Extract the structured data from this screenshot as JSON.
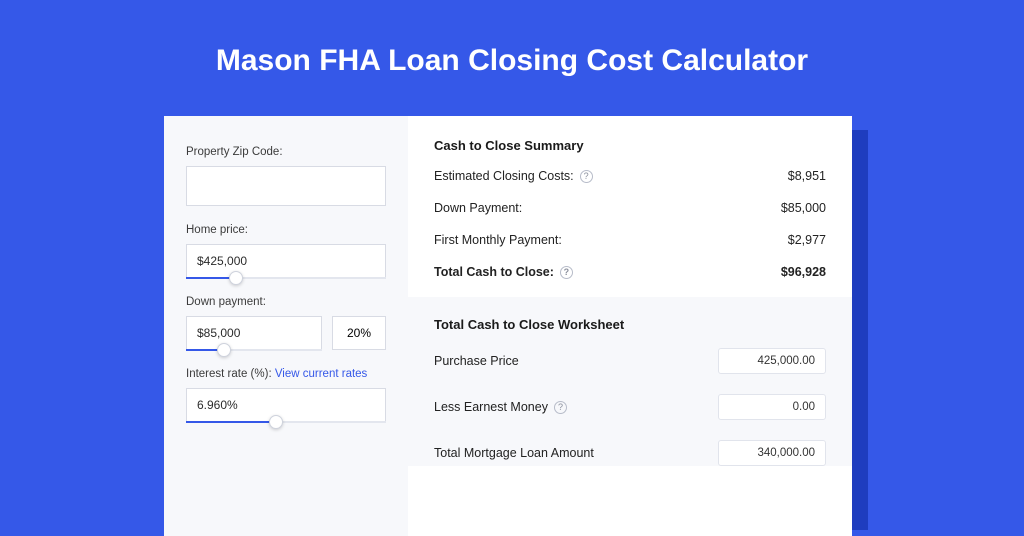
{
  "header": {
    "title": "Mason FHA Loan Closing Cost Calculator"
  },
  "colors": {
    "page_bg": "#3558e8",
    "card_bg": "#ffffff",
    "left_panel_bg": "#f7f8fb",
    "input_border": "#d8dbe4",
    "slider_fill": "#3558e8",
    "slider_empty": "#e3e6ee",
    "link": "#3558e8",
    "card_shadow": "#1e3dbf",
    "text": "#2b2b2b"
  },
  "form": {
    "zip": {
      "label": "Property Zip Code:",
      "value": ""
    },
    "home_price": {
      "label": "Home price:",
      "value": "$425,000",
      "slider_percent": 25
    },
    "down_payment": {
      "label": "Down payment:",
      "value": "$85,000",
      "percent_value": "20%",
      "slider_percent": 28
    },
    "interest_rate": {
      "label_prefix": "Interest rate (%): ",
      "link_text": "View current rates",
      "value": "6.960%",
      "slider_percent": 45
    }
  },
  "summary": {
    "title": "Cash to Close Summary",
    "rows": [
      {
        "label": "Estimated Closing Costs:",
        "help": true,
        "value": "$8,951",
        "bold": false
      },
      {
        "label": "Down Payment:",
        "help": false,
        "value": "$85,000",
        "bold": false
      },
      {
        "label": "First Monthly Payment:",
        "help": false,
        "value": "$2,977",
        "bold": false
      },
      {
        "label": "Total Cash to Close:",
        "help": true,
        "value": "$96,928",
        "bold": true
      }
    ]
  },
  "worksheet": {
    "title": "Total Cash to Close Worksheet",
    "rows": [
      {
        "label": "Purchase Price",
        "help": false,
        "value": "425,000.00"
      },
      {
        "label": "Less Earnest Money",
        "help": true,
        "value": "0.00"
      },
      {
        "label": "Total Mortgage Loan Amount",
        "help": false,
        "value": "340,000.00"
      }
    ]
  }
}
